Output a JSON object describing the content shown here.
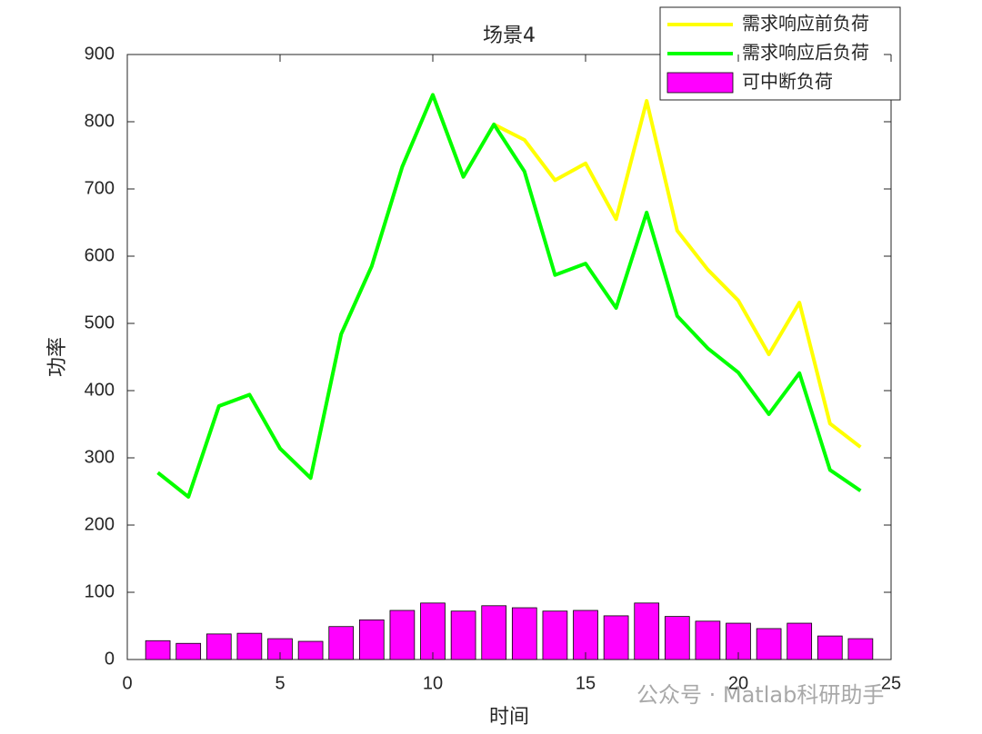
{
  "chart_data": {
    "type": "combo",
    "title": "场景4",
    "x_label": "时间",
    "y_label": "功率",
    "x": [
      1,
      2,
      3,
      4,
      5,
      6,
      7,
      8,
      9,
      10,
      11,
      12,
      13,
      14,
      15,
      16,
      17,
      18,
      19,
      20,
      21,
      22,
      23,
      24
    ],
    "series": [
      {
        "name": "需求响应前负荷",
        "type": "line",
        "color": "#ffff00",
        "values": [
          278,
          242,
          377,
          394,
          314,
          270,
          484,
          585,
          733,
          840,
          718,
          796,
          773,
          713,
          738,
          655,
          831,
          638,
          580,
          534,
          454,
          531,
          351,
          316
        ]
      },
      {
        "name": "需求响应后负荷",
        "type": "line",
        "color": "#00ff00",
        "values": [
          278,
          242,
          377,
          394,
          314,
          270,
          484,
          585,
          733,
          840,
          718,
          796,
          726,
          572,
          589,
          523,
          665,
          511,
          463,
          427,
          365,
          426,
          282,
          251
        ]
      },
      {
        "name": "可中断负荷",
        "type": "bar",
        "color": "#ff00ff",
        "values": [
          28,
          24,
          38,
          39,
          31,
          27,
          49,
          59,
          73,
          84,
          72,
          80,
          77,
          72,
          73,
          65,
          84,
          64,
          57,
          54,
          46,
          54,
          35,
          31
        ]
      }
    ],
    "xlim": [
      0,
      25
    ],
    "xticks": [
      0,
      5,
      10,
      15,
      20,
      25
    ],
    "ylim": [
      0,
      900
    ],
    "yticks": [
      0,
      100,
      200,
      300,
      400,
      500,
      600,
      700,
      800,
      900
    ],
    "legend": "northeast",
    "watermark": "公众号 · Matlab科研助手"
  }
}
